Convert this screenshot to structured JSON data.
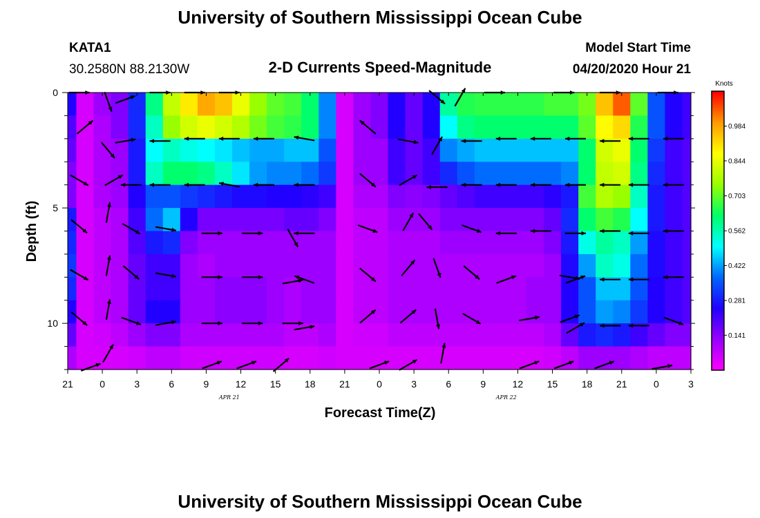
{
  "header": {
    "title": "University of Southern Mississippi Ocean Cube",
    "station": "KATA1",
    "coords": "30.2580N 88.2130W",
    "subtitle": "2-D Currents Speed-Magnitude",
    "model_start_label": "Model Start Time",
    "model_start_value": "04/20/2020 Hour 21"
  },
  "footer": {
    "title": "University of Southern Mississippi Ocean Cube"
  },
  "colors": {
    "arrow": "#000000",
    "scale": [
      "#ff00ff",
      "#9900ff",
      "#2200ff",
      "#0066ff",
      "#00ffff",
      "#00ff66",
      "#99ff00",
      "#ffff00",
      "#ff9900",
      "#ff0000"
    ]
  },
  "chart_data": {
    "type": "heatmap",
    "title": "2-D Currents Speed-Magnitude",
    "xlabel": "Forecast Time(Z)",
    "ylabel": "Depth (ft)",
    "x_unit": "hours from model start (04/20/2020 21Z)",
    "xlim": [
      0,
      54
    ],
    "ylim": [
      0,
      12
    ],
    "y_inverted": true,
    "x_tick_labels": [
      "21",
      "0",
      "3",
      "6",
      "9",
      "12",
      "15",
      "18",
      "21",
      "0",
      "3",
      "6",
      "9",
      "12",
      "15",
      "18",
      "21",
      "0",
      "3"
    ],
    "y_tick_labels": [
      "0",
      "5",
      "10"
    ],
    "y_tick_values": [
      0,
      5,
      10
    ],
    "date_labels": [
      {
        "text": "APR 21",
        "hour": 14
      },
      {
        "text": "APR 22",
        "hour": 38
      }
    ],
    "colorbar": {
      "label": "Knots",
      "ticks": [
        "0.141",
        "0.281",
        "0.422",
        "0.562",
        "0.703",
        "0.844",
        "0.984"
      ],
      "range": [
        0,
        1.125
      ]
    },
    "speed_grid": {
      "description": "current speed (knots) by depth row (0..11 ft) and forecast hour (0..54 by 1.5h)",
      "hours": [
        0,
        1.5,
        3,
        4.5,
        6,
        7.5,
        9,
        10.5,
        12,
        13.5,
        15,
        16.5,
        18,
        19.5,
        21,
        22.5,
        24,
        25.5,
        27,
        28.5,
        30,
        31.5,
        33,
        34.5,
        36,
        37.5,
        39,
        40.5,
        42,
        43.5,
        45,
        46.5,
        48,
        49.5,
        51,
        52.5,
        54
      ],
      "depths": [
        0,
        1,
        2,
        3,
        4,
        5,
        6,
        7,
        8,
        9,
        10,
        11
      ],
      "rows": [
        [
          0.25,
          0.05,
          0.12,
          0.15,
          0.3,
          0.6,
          0.8,
          0.9,
          0.98,
          0.95,
          0.85,
          0.75,
          0.7,
          0.68,
          0.62,
          0.4,
          0.05,
          0.12,
          0.15,
          0.25,
          0.18,
          0.25,
          0.58,
          0.65,
          0.66,
          0.66,
          0.66,
          0.66,
          0.68,
          0.68,
          0.72,
          0.95,
          1.05,
          0.7,
          0.35,
          0.25,
          0.22
        ],
        [
          0.2,
          0.05,
          0.1,
          0.15,
          0.3,
          0.55,
          0.75,
          0.82,
          0.85,
          0.82,
          0.78,
          0.72,
          0.68,
          0.66,
          0.62,
          0.4,
          0.05,
          0.12,
          0.15,
          0.25,
          0.18,
          0.25,
          0.5,
          0.6,
          0.62,
          0.62,
          0.62,
          0.62,
          0.62,
          0.62,
          0.7,
          0.88,
          0.92,
          0.65,
          0.35,
          0.25,
          0.22
        ],
        [
          0.18,
          0.05,
          0.1,
          0.12,
          0.28,
          0.5,
          0.55,
          0.52,
          0.5,
          0.48,
          0.45,
          0.43,
          0.43,
          0.45,
          0.45,
          0.35,
          0.05,
          0.12,
          0.12,
          0.22,
          0.18,
          0.22,
          0.4,
          0.43,
          0.45,
          0.45,
          0.45,
          0.45,
          0.45,
          0.45,
          0.62,
          0.82,
          0.85,
          0.62,
          0.32,
          0.22,
          0.2
        ],
        [
          0.15,
          0.05,
          0.1,
          0.12,
          0.28,
          0.55,
          0.62,
          0.62,
          0.6,
          0.55,
          0.48,
          0.42,
          0.4,
          0.4,
          0.38,
          0.32,
          0.05,
          0.12,
          0.12,
          0.22,
          0.18,
          0.22,
          0.3,
          0.35,
          0.38,
          0.38,
          0.38,
          0.38,
          0.38,
          0.4,
          0.62,
          0.8,
          0.82,
          0.6,
          0.3,
          0.22,
          0.2
        ],
        [
          0.15,
          0.05,
          0.1,
          0.12,
          0.25,
          0.35,
          0.35,
          0.32,
          0.3,
          0.28,
          0.26,
          0.26,
          0.25,
          0.25,
          0.24,
          0.22,
          0.05,
          0.1,
          0.1,
          0.15,
          0.14,
          0.15,
          0.18,
          0.2,
          0.22,
          0.22,
          0.22,
          0.22,
          0.24,
          0.28,
          0.68,
          0.78,
          0.75,
          0.55,
          0.28,
          0.22,
          0.2
        ],
        [
          0.28,
          0.05,
          0.08,
          0.1,
          0.22,
          0.38,
          0.45,
          0.25,
          0.16,
          0.16,
          0.16,
          0.16,
          0.16,
          0.18,
          0.18,
          0.15,
          0.05,
          0.08,
          0.08,
          0.12,
          0.12,
          0.12,
          0.15,
          0.15,
          0.15,
          0.15,
          0.15,
          0.15,
          0.18,
          0.3,
          0.62,
          0.68,
          0.65,
          0.5,
          0.28,
          0.22,
          0.2
        ],
        [
          0.3,
          0.05,
          0.08,
          0.1,
          0.2,
          0.28,
          0.3,
          0.15,
          0.12,
          0.12,
          0.12,
          0.12,
          0.12,
          0.12,
          0.12,
          0.12,
          0.05,
          0.08,
          0.08,
          0.1,
          0.1,
          0.1,
          0.12,
          0.12,
          0.12,
          0.12,
          0.12,
          0.12,
          0.15,
          0.28,
          0.52,
          0.58,
          0.55,
          0.42,
          0.26,
          0.22,
          0.2
        ],
        [
          0.32,
          0.05,
          0.08,
          0.1,
          0.18,
          0.22,
          0.22,
          0.12,
          0.1,
          0.12,
          0.12,
          0.12,
          0.12,
          0.12,
          0.12,
          0.12,
          0.05,
          0.08,
          0.08,
          0.1,
          0.1,
          0.1,
          0.1,
          0.1,
          0.1,
          0.1,
          0.1,
          0.1,
          0.12,
          0.26,
          0.42,
          0.55,
          0.52,
          0.38,
          0.26,
          0.22,
          0.2
        ],
        [
          0.3,
          0.05,
          0.08,
          0.1,
          0.18,
          0.22,
          0.22,
          0.12,
          0.12,
          0.14,
          0.14,
          0.14,
          0.12,
          0.1,
          0.12,
          0.12,
          0.05,
          0.08,
          0.08,
          0.1,
          0.1,
          0.1,
          0.1,
          0.1,
          0.1,
          0.1,
          0.1,
          0.12,
          0.12,
          0.25,
          0.35,
          0.45,
          0.45,
          0.35,
          0.25,
          0.22,
          0.2
        ],
        [
          0.25,
          0.05,
          0.08,
          0.1,
          0.18,
          0.25,
          0.25,
          0.12,
          0.12,
          0.14,
          0.14,
          0.14,
          0.12,
          0.1,
          0.12,
          0.12,
          0.05,
          0.08,
          0.08,
          0.1,
          0.1,
          0.1,
          0.1,
          0.1,
          0.1,
          0.1,
          0.1,
          0.12,
          0.12,
          0.25,
          0.35,
          0.42,
          0.4,
          0.32,
          0.25,
          0.22,
          0.2
        ],
        [
          0.18,
          0.05,
          0.06,
          0.08,
          0.12,
          0.15,
          0.15,
          0.1,
          0.1,
          0.1,
          0.1,
          0.1,
          0.1,
          0.08,
          0.08,
          0.1,
          0.05,
          0.06,
          0.06,
          0.08,
          0.08,
          0.08,
          0.08,
          0.08,
          0.08,
          0.08,
          0.08,
          0.08,
          0.1,
          0.18,
          0.28,
          0.3,
          0.28,
          0.22,
          0.18,
          0.15,
          0.15
        ],
        [
          0.1,
          0.05,
          0.05,
          0.05,
          0.06,
          0.08,
          0.08,
          0.06,
          0.06,
          0.06,
          0.06,
          0.06,
          0.06,
          0.05,
          0.05,
          0.06,
          0.05,
          0.05,
          0.05,
          0.05,
          0.05,
          0.05,
          0.05,
          0.05,
          0.05,
          0.05,
          0.05,
          0.05,
          0.06,
          0.08,
          0.12,
          0.12,
          0.12,
          0.1,
          0.08,
          0.08,
          0.08
        ]
      ]
    },
    "vectors": {
      "description": "current direction arrows: [hour, depth_ft, direction_deg (0=east, 90=south on plot), relative_length]",
      "points": [
        [
          1,
          0,
          0,
          0.6
        ],
        [
          3.5,
          0.4,
          70,
          0.6
        ],
        [
          5,
          0.3,
          -20,
          0.6
        ],
        [
          8,
          0,
          0,
          0.6
        ],
        [
          11,
          0,
          0,
          0.6
        ],
        [
          14,
          0,
          0,
          0.6
        ],
        [
          32,
          0.2,
          40,
          0.6
        ],
        [
          34,
          0.2,
          -60,
          0.6
        ],
        [
          37,
          0,
          0,
          0.6
        ],
        [
          43,
          0,
          0,
          0.6
        ],
        [
          47,
          0,
          0,
          0.6
        ],
        [
          52,
          0,
          0,
          0.6
        ],
        [
          1.5,
          1.5,
          -40,
          0.6
        ],
        [
          3.5,
          2.5,
          50,
          0.6
        ],
        [
          5,
          2.1,
          -10,
          0.6
        ],
        [
          8,
          2.1,
          180,
          0.6
        ],
        [
          11,
          2.0,
          180,
          0.6
        ],
        [
          14,
          2.0,
          180,
          0.6
        ],
        [
          17,
          2.0,
          180,
          0.6
        ],
        [
          20.5,
          2.0,
          190,
          0.6
        ],
        [
          26,
          1.5,
          220,
          0.6
        ],
        [
          29.5,
          2.1,
          10,
          0.6
        ],
        [
          32,
          2.3,
          -60,
          0.6
        ],
        [
          35,
          2.1,
          180,
          0.6
        ],
        [
          38,
          2.0,
          180,
          0.6
        ],
        [
          41,
          2.0,
          180,
          0.6
        ],
        [
          44,
          2.0,
          180,
          0.6
        ],
        [
          47,
          2.1,
          180,
          0.6
        ],
        [
          49.5,
          2.0,
          180,
          0.6
        ],
        [
          52.5,
          2.0,
          180,
          0.6
        ],
        [
          1,
          3.8,
          30,
          0.6
        ],
        [
          4,
          3.8,
          -30,
          0.6
        ],
        [
          5.5,
          4.0,
          180,
          0.6
        ],
        [
          8,
          4.0,
          180,
          0.6
        ],
        [
          11,
          4.0,
          180,
          0.6
        ],
        [
          14,
          4.0,
          190,
          0.6
        ],
        [
          17,
          4.0,
          180,
          0.6
        ],
        [
          20.5,
          4.0,
          180,
          0.6
        ],
        [
          26,
          3.8,
          40,
          0.6
        ],
        [
          29.5,
          3.8,
          -30,
          0.6
        ],
        [
          32,
          4.1,
          180,
          0.6
        ],
        [
          35,
          4.0,
          180,
          0.6
        ],
        [
          38,
          4.0,
          180,
          0.6
        ],
        [
          41,
          4.0,
          180,
          0.6
        ],
        [
          44,
          4.0,
          180,
          0.6
        ],
        [
          47,
          4.0,
          180,
          0.6
        ],
        [
          49.5,
          4.0,
          180,
          0.6
        ],
        [
          52.5,
          4.0,
          180,
          0.6
        ],
        [
          1,
          5.8,
          40,
          0.6
        ],
        [
          3.5,
          5.2,
          -80,
          0.6
        ],
        [
          5.5,
          5.9,
          30,
          0.6
        ],
        [
          8.5,
          5.9,
          10,
          0.6
        ],
        [
          12.5,
          6.1,
          0,
          0.6
        ],
        [
          16,
          6.1,
          0,
          0.6
        ],
        [
          19.5,
          6.3,
          60,
          0.6
        ],
        [
          20.5,
          6.1,
          180,
          0.6
        ],
        [
          26,
          5.9,
          20,
          0.6
        ],
        [
          29.5,
          5.6,
          -60,
          0.6
        ],
        [
          31,
          5.6,
          50,
          0.6
        ],
        [
          35,
          5.9,
          20,
          0.6
        ],
        [
          38,
          6.1,
          180,
          0.6
        ],
        [
          41,
          6.0,
          180,
          0.6
        ],
        [
          44,
          6.1,
          0,
          0.6
        ],
        [
          47,
          6.0,
          180,
          0.6
        ],
        [
          49.5,
          6.1,
          180,
          0.6
        ],
        [
          52.5,
          6.0,
          180,
          0.6
        ],
        [
          1,
          7.9,
          30,
          0.6
        ],
        [
          3.5,
          7.5,
          -80,
          0.6
        ],
        [
          5.5,
          7.8,
          40,
          0.6
        ],
        [
          8.5,
          7.9,
          10,
          0.6
        ],
        [
          12.5,
          8.0,
          0,
          0.6
        ],
        [
          16,
          8.0,
          0,
          0.6
        ],
        [
          19.5,
          8.2,
          -10,
          0.6
        ],
        [
          20.5,
          8.1,
          200,
          0.6
        ],
        [
          26,
          7.9,
          40,
          0.6
        ],
        [
          29.5,
          7.6,
          -50,
          0.6
        ],
        [
          32,
          7.6,
          70,
          0.6
        ],
        [
          35,
          7.8,
          40,
          0.6
        ],
        [
          38,
          8.1,
          -20,
          0.6
        ],
        [
          43.5,
          8.0,
          10,
          0.6
        ],
        [
          44,
          8.1,
          -20,
          0.6
        ],
        [
          47,
          8.1,
          180,
          0.6
        ],
        [
          49.5,
          8.1,
          180,
          0.6
        ],
        [
          52.5,
          8.0,
          180,
          0.6
        ],
        [
          1,
          9.8,
          40,
          0.6
        ],
        [
          3.5,
          9.4,
          -80,
          0.6
        ],
        [
          5.5,
          9.9,
          20,
          0.6
        ],
        [
          8.5,
          10.0,
          -10,
          0.6
        ],
        [
          12.5,
          10.0,
          0,
          0.6
        ],
        [
          16,
          10.0,
          0,
          0.6
        ],
        [
          19.5,
          10.0,
          0,
          0.6
        ],
        [
          20.5,
          10.2,
          -10,
          0.6
        ],
        [
          26,
          9.7,
          -40,
          0.6
        ],
        [
          29.5,
          9.7,
          -40,
          0.6
        ],
        [
          32,
          9.8,
          80,
          0.6
        ],
        [
          35,
          9.8,
          30,
          0.6
        ],
        [
          40,
          9.8,
          -10,
          0.6
        ],
        [
          43.5,
          9.8,
          -20,
          0.6
        ],
        [
          44,
          10.2,
          -30,
          0.6
        ],
        [
          47,
          10.1,
          180,
          0.6
        ],
        [
          49.5,
          10.1,
          180,
          0.6
        ],
        [
          52.5,
          9.9,
          20,
          0.6
        ],
        [
          2,
          11.9,
          -20,
          0.6
        ],
        [
          3.5,
          11.3,
          -60,
          0.6
        ],
        [
          12.5,
          11.8,
          -20,
          0.6
        ],
        [
          15.5,
          11.8,
          -20,
          0.6
        ],
        [
          18.5,
          11.8,
          -40,
          0.6
        ],
        [
          27,
          11.8,
          -20,
          0.6
        ],
        [
          29.5,
          11.8,
          -30,
          0.6
        ],
        [
          32.5,
          11.3,
          -80,
          0.6
        ],
        [
          40,
          11.8,
          -20,
          0.6
        ],
        [
          43,
          11.8,
          -20,
          0.6
        ],
        [
          46.5,
          11.8,
          -20,
          0.6
        ],
        [
          51.5,
          11.9,
          -10,
          0.6
        ]
      ]
    }
  }
}
